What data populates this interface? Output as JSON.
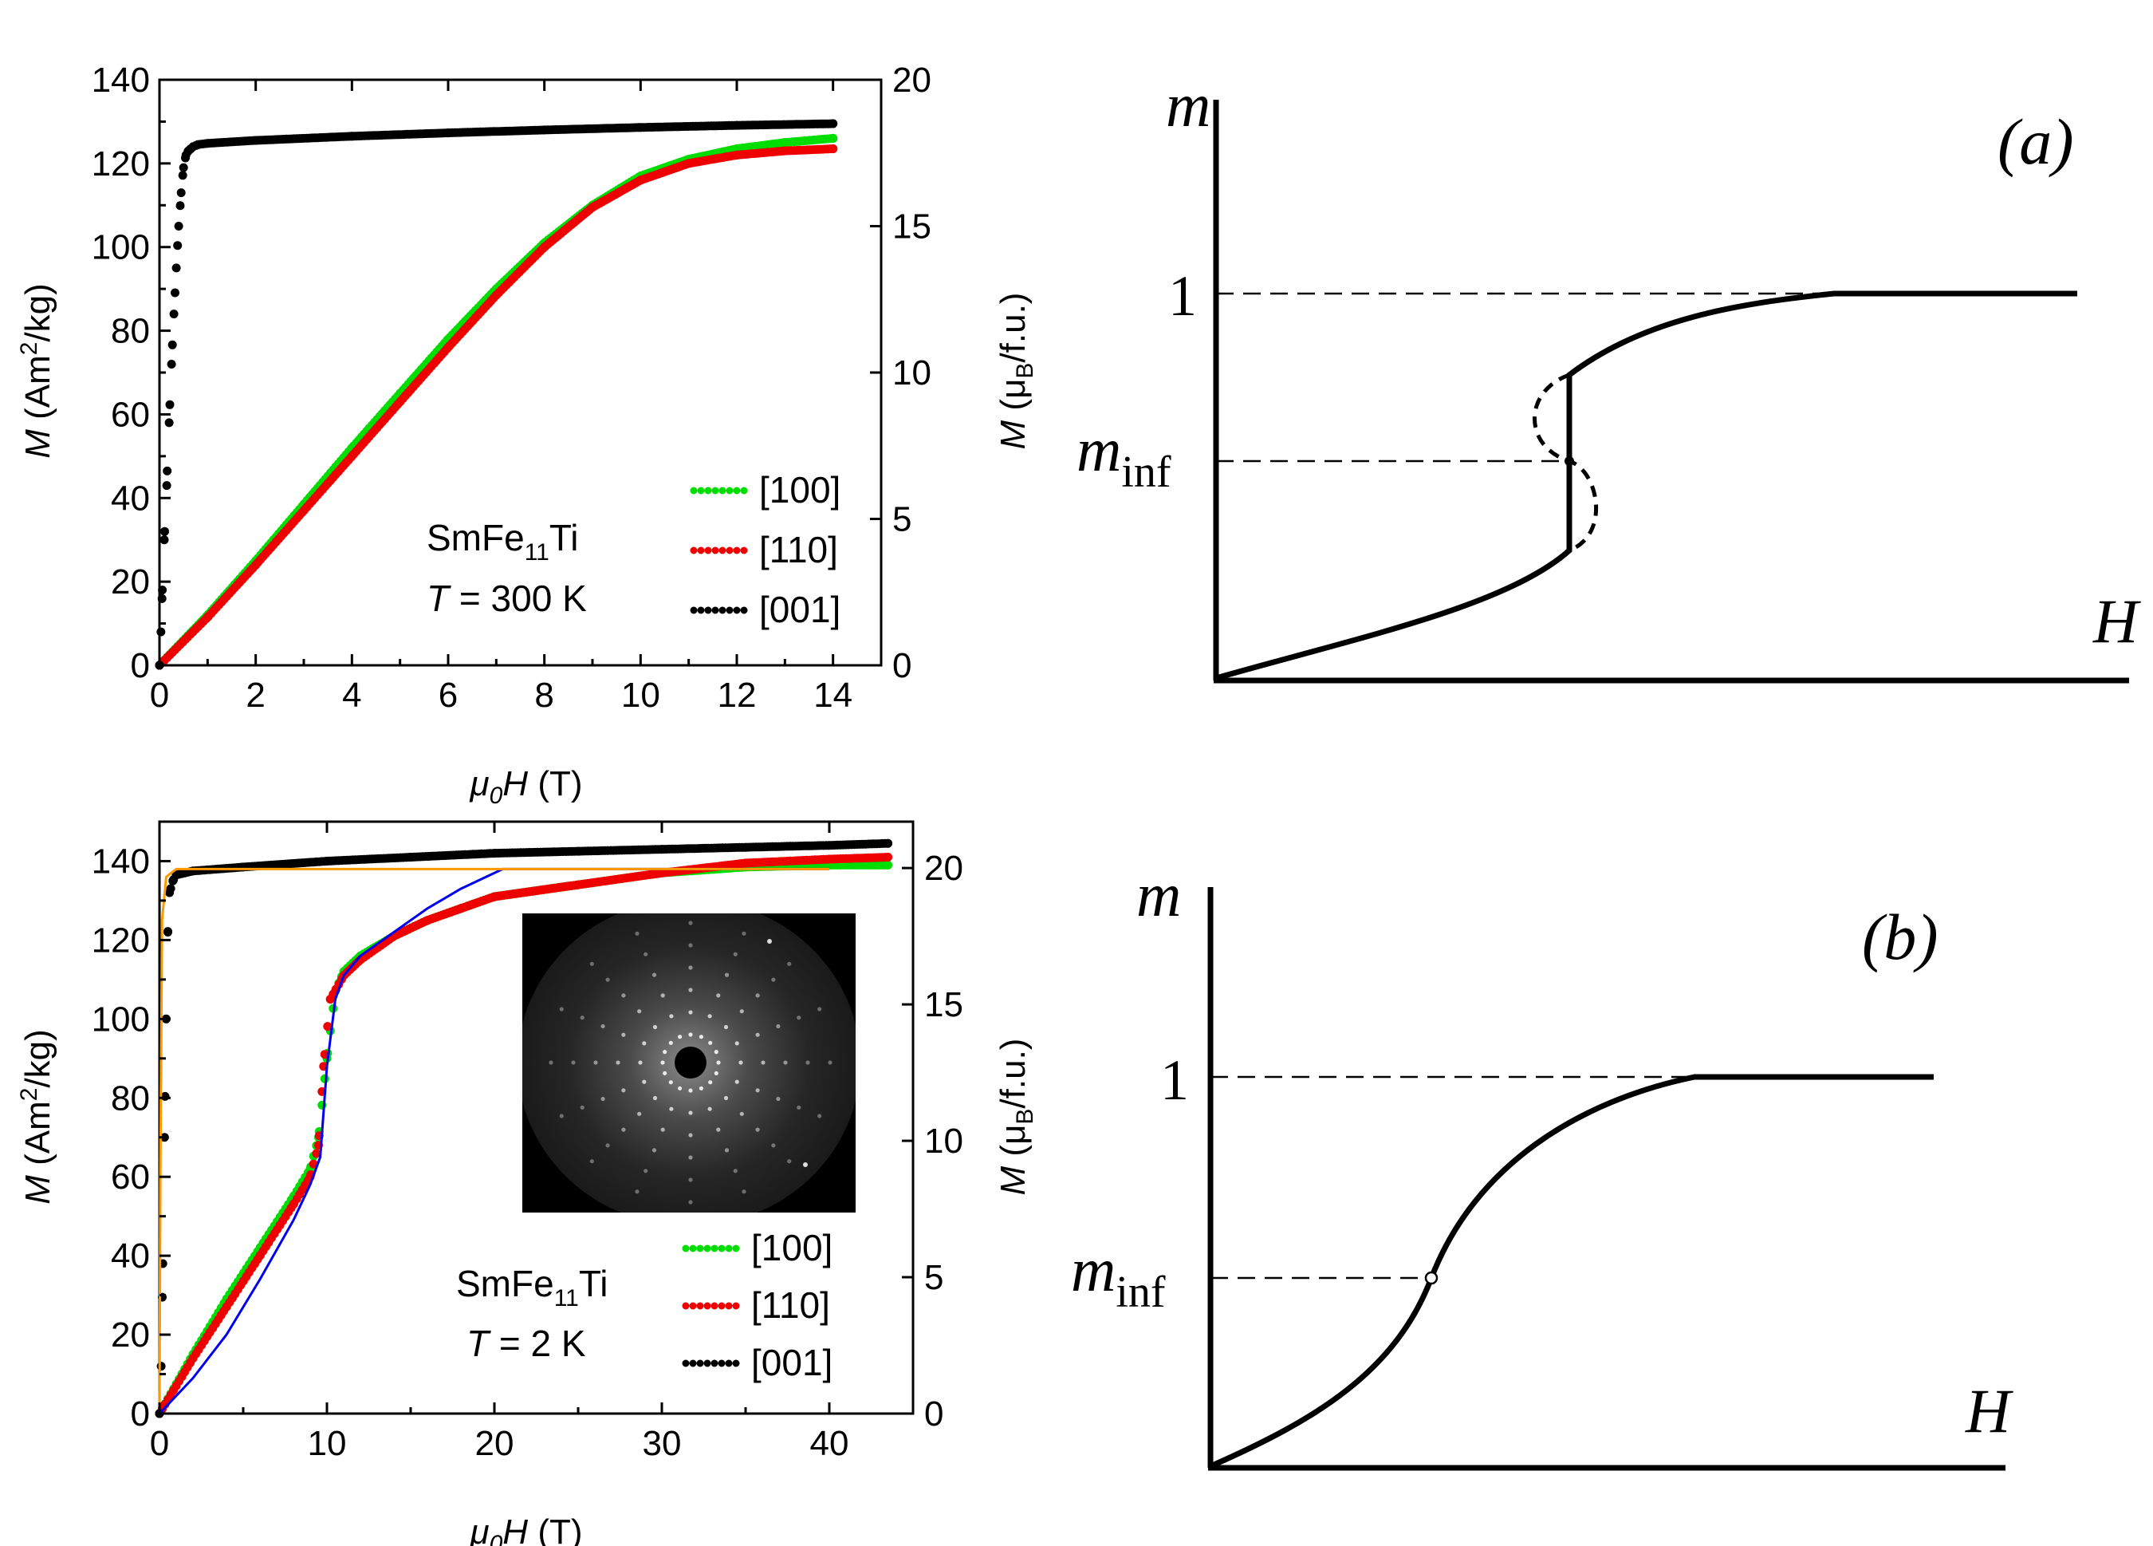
{
  "chart_data": [
    {
      "id": "top-left",
      "type": "scatter",
      "xlabel_var": "μ",
      "xlabel_sub": "0",
      "xlabel_var2": "H",
      "xlabel_unit": "(T)",
      "ylabel_left": "M (Am²/kg)",
      "ylabel_right": "M (μB/f.u.)",
      "xlim": [
        0,
        15
      ],
      "ylim_left": [
        0,
        140
      ],
      "ylim_right": [
        0,
        20
      ],
      "x_ticks": [
        "0",
        "2",
        "4",
        "6",
        "8",
        "10",
        "12",
        "14"
      ],
      "y_ticks_left": [
        "0",
        "20",
        "40",
        "60",
        "80",
        "100",
        "120",
        "140"
      ],
      "y_ticks_right": [
        "0",
        "5",
        "10",
        "15",
        "20"
      ],
      "annotation": {
        "compound": "SmFe",
        "sub": "11",
        "suffix": "Ti",
        "temp_var": "T",
        "temp_value": "= 300 K"
      },
      "legend": {
        "placement": "bottom-right",
        "entries": [
          "[100]",
          "[110]",
          "[001]"
        ]
      },
      "series": [
        {
          "name": "[100]",
          "color": "#00dd00",
          "x": [
            0,
            1,
            2,
            3,
            4,
            5,
            6,
            7,
            8,
            9,
            10,
            11,
            12,
            13,
            14
          ],
          "y": [
            0,
            12,
            25,
            38.5,
            52,
            65,
            78,
            90,
            101,
            110,
            117,
            121,
            123.5,
            125,
            126
          ]
        },
        {
          "name": "[110]",
          "color": "#ee0000",
          "x": [
            0,
            1,
            2,
            3,
            4,
            5,
            6,
            7,
            8,
            9,
            10,
            11,
            12,
            13,
            14
          ],
          "y": [
            0,
            11.5,
            24,
            37,
            50,
            63,
            76,
            88.5,
            100,
            109.5,
            116,
            120,
            122,
            123,
            123.5
          ]
        },
        {
          "name": "[001]",
          "color": "#000000",
          "x": [
            0,
            0.03,
            0.06,
            0.1,
            0.15,
            0.2,
            0.25,
            0.3,
            0.35,
            0.4,
            0.45,
            0.5,
            0.55,
            0.6,
            0.65,
            0.7,
            0.8,
            1,
            2,
            4,
            6,
            8,
            10,
            12,
            14
          ],
          "y": [
            0,
            8,
            18,
            30,
            43,
            58,
            72,
            84,
            95,
            105,
            113,
            119,
            122,
            123,
            123.5,
            124,
            124.5,
            124.8,
            125.5,
            126.5,
            127.3,
            128,
            128.6,
            129.1,
            129.5
          ]
        }
      ]
    },
    {
      "id": "bottom-left",
      "type": "scatter",
      "xlabel_var": "μ",
      "xlabel_sub": "0",
      "xlabel_var2": "H",
      "xlabel_unit": "(T)",
      "ylabel_left": "M (Am²/kg)",
      "ylabel_right": "M (μB/f.u.)",
      "xlim": [
        0,
        45
      ],
      "ylim_left": [
        0,
        150
      ],
      "ylim_right": [
        0,
        21.7
      ],
      "x_ticks": [
        "0",
        "10",
        "20",
        "30",
        "40"
      ],
      "y_ticks_left": [
        "0",
        "20",
        "40",
        "60",
        "80",
        "100",
        "120",
        "140"
      ],
      "y_ticks_right": [
        "0",
        "5",
        "10",
        "15",
        "20"
      ],
      "annotation": {
        "compound": "SmFe",
        "sub": "11",
        "suffix": "Ti",
        "temp_var": "T",
        "temp_value": "= 2 K"
      },
      "legend": {
        "placement": "bottom-right",
        "entries": [
          "[100]",
          "[110]",
          "[001]"
        ]
      },
      "series": [
        {
          "name": "[100]",
          "color": "#00dd00",
          "x": [
            0,
            2,
            4,
            6,
            8,
            9,
            9.5,
            10,
            10.5,
            11,
            12,
            14,
            16,
            18,
            20,
            25,
            30,
            35,
            40,
            43.5
          ],
          "y": [
            0,
            15,
            29,
            42,
            55,
            62,
            70,
            90,
            107,
            112,
            116,
            121,
            125,
            128,
            131,
            134,
            137,
            138.5,
            139,
            139
          ]
        },
        {
          "name": "[110]",
          "color": "#ee0000",
          "x": [
            0,
            2,
            4,
            6,
            8,
            9,
            9.5,
            9.8,
            10.2,
            11,
            12,
            14,
            16,
            18,
            20,
            25,
            30,
            35,
            40,
            43.5
          ],
          "y": [
            0,
            14,
            27,
            40,
            53,
            60,
            68,
            88,
            105,
            111,
            115,
            121,
            125,
            128,
            131,
            134,
            137,
            139.5,
            140.5,
            141
          ]
        },
        {
          "name": "[001]",
          "color": "#000000",
          "x": [
            0,
            0.1,
            0.2,
            0.3,
            0.4,
            0.5,
            0.6,
            0.8,
            1,
            2,
            5,
            10,
            15,
            20,
            25,
            30,
            35,
            40,
            43.5
          ],
          "y": [
            0,
            12,
            38,
            70,
            100,
            122,
            132,
            135,
            136.5,
            137.5,
            138.5,
            140,
            141,
            142,
            142.5,
            143,
            143.5,
            144,
            144.5
          ]
        },
        {
          "name": "",
          "color": "#0000ee",
          "style": "line",
          "x": [
            0,
            2,
            4,
            6,
            8,
            9,
            9.6,
            10,
            10.5,
            11,
            12,
            14,
            16,
            18,
            20.5,
            40
          ],
          "y": [
            0,
            9,
            20,
            34,
            49,
            58,
            65,
            88,
            105,
            111,
            116,
            122,
            128,
            133,
            138,
            138
          ]
        },
        {
          "name": "",
          "color": "#ff9900",
          "style": "line",
          "x": [
            0,
            0.05,
            0.15,
            0.4,
            1,
            40
          ],
          "y": [
            0,
            60,
            125,
            136,
            138,
            138
          ]
        }
      ]
    },
    {
      "id": "sketch-a",
      "type": "line",
      "panel_label": "(a)",
      "ylabel": "m",
      "xlabel": "H",
      "tick_one": "1",
      "tick_minf_m": "m",
      "tick_minf_sub": "inf",
      "curve": "first-order magnetization process: jump at m_inf, saturation m = 1"
    },
    {
      "id": "sketch-b",
      "type": "line",
      "panel_label": "(b)",
      "ylabel": "m",
      "xlabel": "H",
      "tick_one": "1",
      "tick_minf_m": "m",
      "tick_minf_sub": "inf",
      "curve": "continuous S-shaped magnetization with inflection at m_inf, saturation m = 1"
    }
  ]
}
